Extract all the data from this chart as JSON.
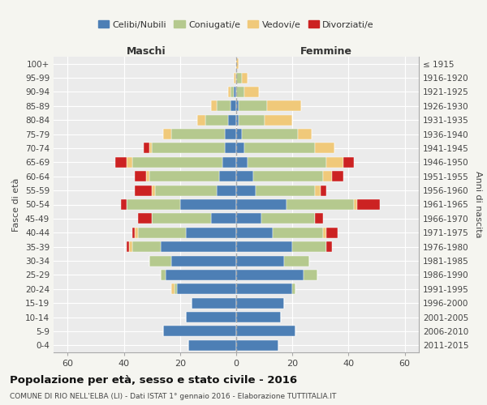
{
  "age_groups": [
    "100+",
    "95-99",
    "90-94",
    "85-89",
    "80-84",
    "75-79",
    "70-74",
    "65-69",
    "60-64",
    "55-59",
    "50-54",
    "45-49",
    "40-44",
    "35-39",
    "30-34",
    "25-29",
    "20-24",
    "15-19",
    "10-14",
    "5-9",
    "0-4"
  ],
  "birth_years": [
    "≤ 1915",
    "1916-1920",
    "1921-1925",
    "1926-1930",
    "1931-1935",
    "1936-1940",
    "1941-1945",
    "1946-1950",
    "1951-1955",
    "1956-1960",
    "1961-1965",
    "1966-1970",
    "1971-1975",
    "1976-1980",
    "1981-1985",
    "1986-1990",
    "1991-1995",
    "1996-2000",
    "2001-2005",
    "2006-2010",
    "2011-2015"
  ],
  "colors": {
    "celibe": "#4d7fb5",
    "coniugato": "#b5c98e",
    "vedovo": "#f0c97a",
    "divorziato": "#cc2222"
  },
  "maschi": {
    "celibe": [
      0,
      0,
      1,
      2,
      3,
      4,
      4,
      5,
      6,
      7,
      20,
      9,
      18,
      27,
      23,
      25,
      21,
      16,
      18,
      26,
      17
    ],
    "coniugato": [
      0,
      0,
      1,
      5,
      8,
      19,
      26,
      32,
      25,
      22,
      19,
      21,
      17,
      10,
      8,
      2,
      1,
      0,
      0,
      0,
      0
    ],
    "vedovo": [
      0,
      1,
      1,
      2,
      3,
      3,
      1,
      2,
      1,
      1,
      0,
      0,
      1,
      1,
      0,
      0,
      1,
      0,
      0,
      0,
      0
    ],
    "divorziato": [
      0,
      0,
      0,
      0,
      0,
      0,
      2,
      4,
      4,
      6,
      2,
      5,
      1,
      1,
      0,
      0,
      0,
      0,
      0,
      0,
      0
    ]
  },
  "femmine": {
    "celibe": [
      0,
      0,
      0,
      1,
      1,
      2,
      3,
      4,
      6,
      7,
      18,
      9,
      13,
      20,
      17,
      24,
      20,
      17,
      16,
      21,
      15
    ],
    "coniugato": [
      0,
      2,
      3,
      10,
      9,
      20,
      25,
      28,
      25,
      21,
      24,
      19,
      18,
      12,
      9,
      5,
      1,
      0,
      0,
      0,
      0
    ],
    "vedovo": [
      1,
      2,
      5,
      12,
      10,
      5,
      7,
      6,
      3,
      2,
      1,
      0,
      1,
      0,
      0,
      0,
      0,
      0,
      0,
      0,
      0
    ],
    "divorziato": [
      0,
      0,
      0,
      0,
      0,
      0,
      0,
      4,
      4,
      2,
      8,
      3,
      4,
      2,
      0,
      0,
      0,
      0,
      0,
      0,
      0
    ]
  },
  "xlim": 65,
  "title": "Popolazione per età, sesso e stato civile - 2016",
  "subtitle": "COMUNE DI RIO NELL'ELBA (LI) - Dati ISTAT 1° gennaio 2016 - Elaborazione TUTTITALIA.IT",
  "ylabel_left": "Fasce di età",
  "ylabel_right": "Anni di nascita",
  "legend_labels": [
    "Celibi/Nubili",
    "Coniugati/e",
    "Vedovi/e",
    "Divorziati/e"
  ],
  "maschi_label": "Maschi",
  "femmine_label": "Femmine",
  "bg_color": "#f0eeee",
  "ax_bg_color": "#e8e8e8"
}
